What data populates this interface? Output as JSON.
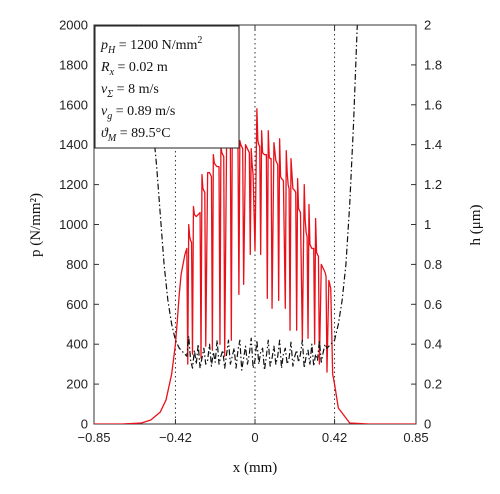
{
  "chart_data": {
    "type": "line",
    "title": "",
    "xlabel": "x (mm)",
    "ylabel_left": "p (N/mm²)",
    "ylabel_right": "h (μm)",
    "xlim": [
      -0.85,
      0.85
    ],
    "ylim_left": [
      0,
      2000
    ],
    "ylim_right": [
      0,
      2
    ],
    "x_ticks": [
      -0.85,
      -0.42,
      0,
      0.42,
      0.85
    ],
    "x_tick_labels": [
      "−0.85",
      "−0.42",
      "0",
      "0.42",
      "0.85"
    ],
    "y_left_ticks": [
      0,
      200,
      400,
      600,
      800,
      1000,
      1200,
      1400,
      1600,
      1800,
      2000
    ],
    "y_left_tick_labels": [
      "0",
      "200",
      "400",
      "600",
      "800",
      "1000",
      "1200",
      "1400",
      "1600",
      "1800",
      "2000"
    ],
    "y_right_ticks": [
      0,
      0.2,
      0.4,
      0.6,
      0.8,
      1,
      1.2,
      1.4,
      1.6,
      1.8,
      2
    ],
    "y_right_tick_labels": [
      "0",
      "0.2",
      "0.4",
      "0.6",
      "0.8",
      "1",
      "1.2",
      "1.4",
      "1.6",
      "1.8",
      "2"
    ],
    "grid": "dotted lines at x = -0.42, 0, 0.42",
    "legend": {
      "placement": "top-left",
      "lines": [
        {
          "sym": "p",
          "sub": "H",
          "rest": " = 1200 N/mm",
          "sup": "2"
        },
        {
          "sym": "R",
          "sub": "x",
          "rest": " = 0.02 m",
          "sup": ""
        },
        {
          "sym": "v",
          "sub": "Σ",
          "rest": " = 8 m/s",
          "sup": ""
        },
        {
          "sym": "v",
          "sub": "g",
          "rest": " = 0.89 m/s",
          "sup": ""
        },
        {
          "sym": "ϑ",
          "sub": "M",
          "rest": " = 89.5°C",
          "sup": ""
        }
      ]
    },
    "series": [
      {
        "axis": "left",
        "color": "#e8111a",
        "style": "solid",
        "x": [
          -0.85,
          -0.7,
          -0.6,
          -0.55,
          -0.5,
          -0.47,
          -0.44,
          -0.42,
          -0.41,
          -0.4,
          -0.39,
          -0.38,
          -0.37,
          -0.36,
          -0.355,
          -0.35,
          -0.345,
          -0.34,
          -0.335,
          -0.33,
          -0.325,
          -0.32,
          -0.31,
          -0.3,
          -0.29,
          -0.285,
          -0.28,
          -0.275,
          -0.27,
          -0.265,
          -0.26,
          -0.25,
          -0.24,
          -0.235,
          -0.23,
          -0.225,
          -0.22,
          -0.215,
          -0.21,
          -0.2,
          -0.19,
          -0.185,
          -0.18,
          -0.175,
          -0.17,
          -0.165,
          -0.16,
          -0.15,
          -0.14,
          -0.135,
          -0.13,
          -0.125,
          -0.12,
          -0.115,
          -0.11,
          -0.1,
          -0.09,
          -0.085,
          -0.08,
          -0.075,
          -0.07,
          -0.065,
          -0.06,
          -0.05,
          -0.04,
          -0.035,
          -0.03,
          -0.025,
          -0.02,
          -0.015,
          -0.01,
          0,
          0.01,
          0.015,
          0.02,
          0.025,
          0.03,
          0.035,
          0.04,
          0.05,
          0.06,
          0.065,
          0.07,
          0.075,
          0.08,
          0.085,
          0.09,
          0.1,
          0.11,
          0.115,
          0.12,
          0.125,
          0.13,
          0.135,
          0.14,
          0.15,
          0.16,
          0.165,
          0.17,
          0.175,
          0.18,
          0.185,
          0.19,
          0.2,
          0.21,
          0.215,
          0.22,
          0.225,
          0.23,
          0.235,
          0.24,
          0.25,
          0.26,
          0.265,
          0.27,
          0.275,
          0.28,
          0.285,
          0.29,
          0.3,
          0.31,
          0.315,
          0.32,
          0.325,
          0.33,
          0.335,
          0.34,
          0.35,
          0.36,
          0.365,
          0.37,
          0.375,
          0.38,
          0.39,
          0.4,
          0.41,
          0.42,
          0.44,
          0.5,
          0.6,
          0.85
        ],
        "y": [
          0,
          0,
          5,
          20,
          60,
          120,
          250,
          400,
          520,
          650,
          750,
          800,
          850,
          880,
          300,
          1000,
          940,
          920,
          910,
          350,
          1090,
          1050,
          1040,
          1050,
          1060,
          330,
          1250,
          1180,
          1170,
          1160,
          390,
          1260,
          1260,
          1250,
          1240,
          370,
          1350,
          1310,
          1300,
          1290,
          1290,
          400,
          1390,
          1360,
          1350,
          1340,
          340,
          1410,
          1400,
          1390,
          1380,
          420,
          1480,
          1430,
          1420,
          1420,
          1420,
          650,
          1420,
          1400,
          1390,
          1380,
          700,
          1400,
          1380,
          1370,
          1360,
          850,
          1380,
          1300,
          1250,
          870,
          1580,
          1420,
          1400,
          1390,
          850,
          1470,
          1360,
          1350,
          1350,
          630,
          1470,
          1340,
          1330,
          1330,
          580,
          1410,
          1320,
          1310,
          1300,
          620,
          1430,
          1240,
          1230,
          1220,
          580,
          1370,
          1260,
          1200,
          1180,
          470,
          1330,
          1180,
          1170,
          1160,
          470,
          1230,
          1080,
          1070,
          1060,
          420,
          1200,
          1020,
          960,
          940,
          430,
          1100,
          900,
          880,
          880,
          400,
          1030,
          860,
          850,
          840,
          300,
          800,
          780,
          770,
          760,
          740,
          260,
          720,
          680,
          250,
          200,
          80,
          5,
          0,
          0
        ]
      },
      {
        "axis": "right",
        "color": "#111111",
        "style": "dash-dot",
        "x": [
          -0.85,
          -0.6,
          -0.55,
          -0.52,
          -0.5,
          -0.48,
          -0.46,
          -0.44,
          -0.42,
          -0.4,
          -0.38,
          -0.36,
          -0.35,
          -0.34,
          -0.33,
          -0.32,
          -0.31,
          -0.3,
          -0.29,
          -0.28,
          -0.27,
          -0.26,
          -0.25,
          -0.24,
          -0.23,
          -0.22,
          -0.21,
          -0.2,
          -0.19,
          -0.18,
          -0.17,
          -0.16,
          -0.15,
          -0.14,
          -0.13,
          -0.12,
          -0.11,
          -0.1,
          -0.09,
          -0.08,
          -0.07,
          -0.06,
          -0.05,
          -0.04,
          -0.03,
          -0.02,
          -0.01,
          0,
          0.01,
          0.02,
          0.03,
          0.04,
          0.05,
          0.06,
          0.07,
          0.08,
          0.09,
          0.1,
          0.11,
          0.12,
          0.13,
          0.14,
          0.15,
          0.16,
          0.17,
          0.18,
          0.19,
          0.2,
          0.21,
          0.22,
          0.23,
          0.24,
          0.25,
          0.26,
          0.27,
          0.28,
          0.29,
          0.3,
          0.31,
          0.32,
          0.33,
          0.34,
          0.35,
          0.36,
          0.37,
          0.38,
          0.4,
          0.42,
          0.44,
          0.46,
          0.48,
          0.5,
          0.52,
          0.54
        ],
        "y": [
          3.5,
          2.0,
          1.6,
          1.3,
          1.05,
          0.8,
          0.62,
          0.5,
          0.42,
          0.38,
          0.36,
          0.34,
          0.44,
          0.32,
          0.28,
          0.37,
          0.3,
          0.4,
          0.28,
          0.33,
          0.38,
          0.3,
          0.32,
          0.4,
          0.29,
          0.36,
          0.31,
          0.42,
          0.3,
          0.34,
          0.37,
          0.28,
          0.35,
          0.42,
          0.3,
          0.34,
          0.38,
          0.28,
          0.37,
          0.42,
          0.27,
          0.33,
          0.39,
          0.3,
          0.35,
          0.43,
          0.28,
          0.32,
          0.42,
          0.3,
          0.36,
          0.38,
          0.27,
          0.34,
          0.42,
          0.29,
          0.33,
          0.39,
          0.3,
          0.34,
          0.42,
          0.28,
          0.35,
          0.38,
          0.3,
          0.33,
          0.41,
          0.29,
          0.34,
          0.37,
          0.31,
          0.35,
          0.42,
          0.28,
          0.34,
          0.37,
          0.3,
          0.4,
          0.29,
          0.35,
          0.32,
          0.42,
          0.31,
          0.36,
          0.4,
          0.38,
          0.4,
          0.42,
          0.5,
          0.62,
          0.8,
          1.1,
          1.5,
          2.0
        ]
      }
    ]
  }
}
